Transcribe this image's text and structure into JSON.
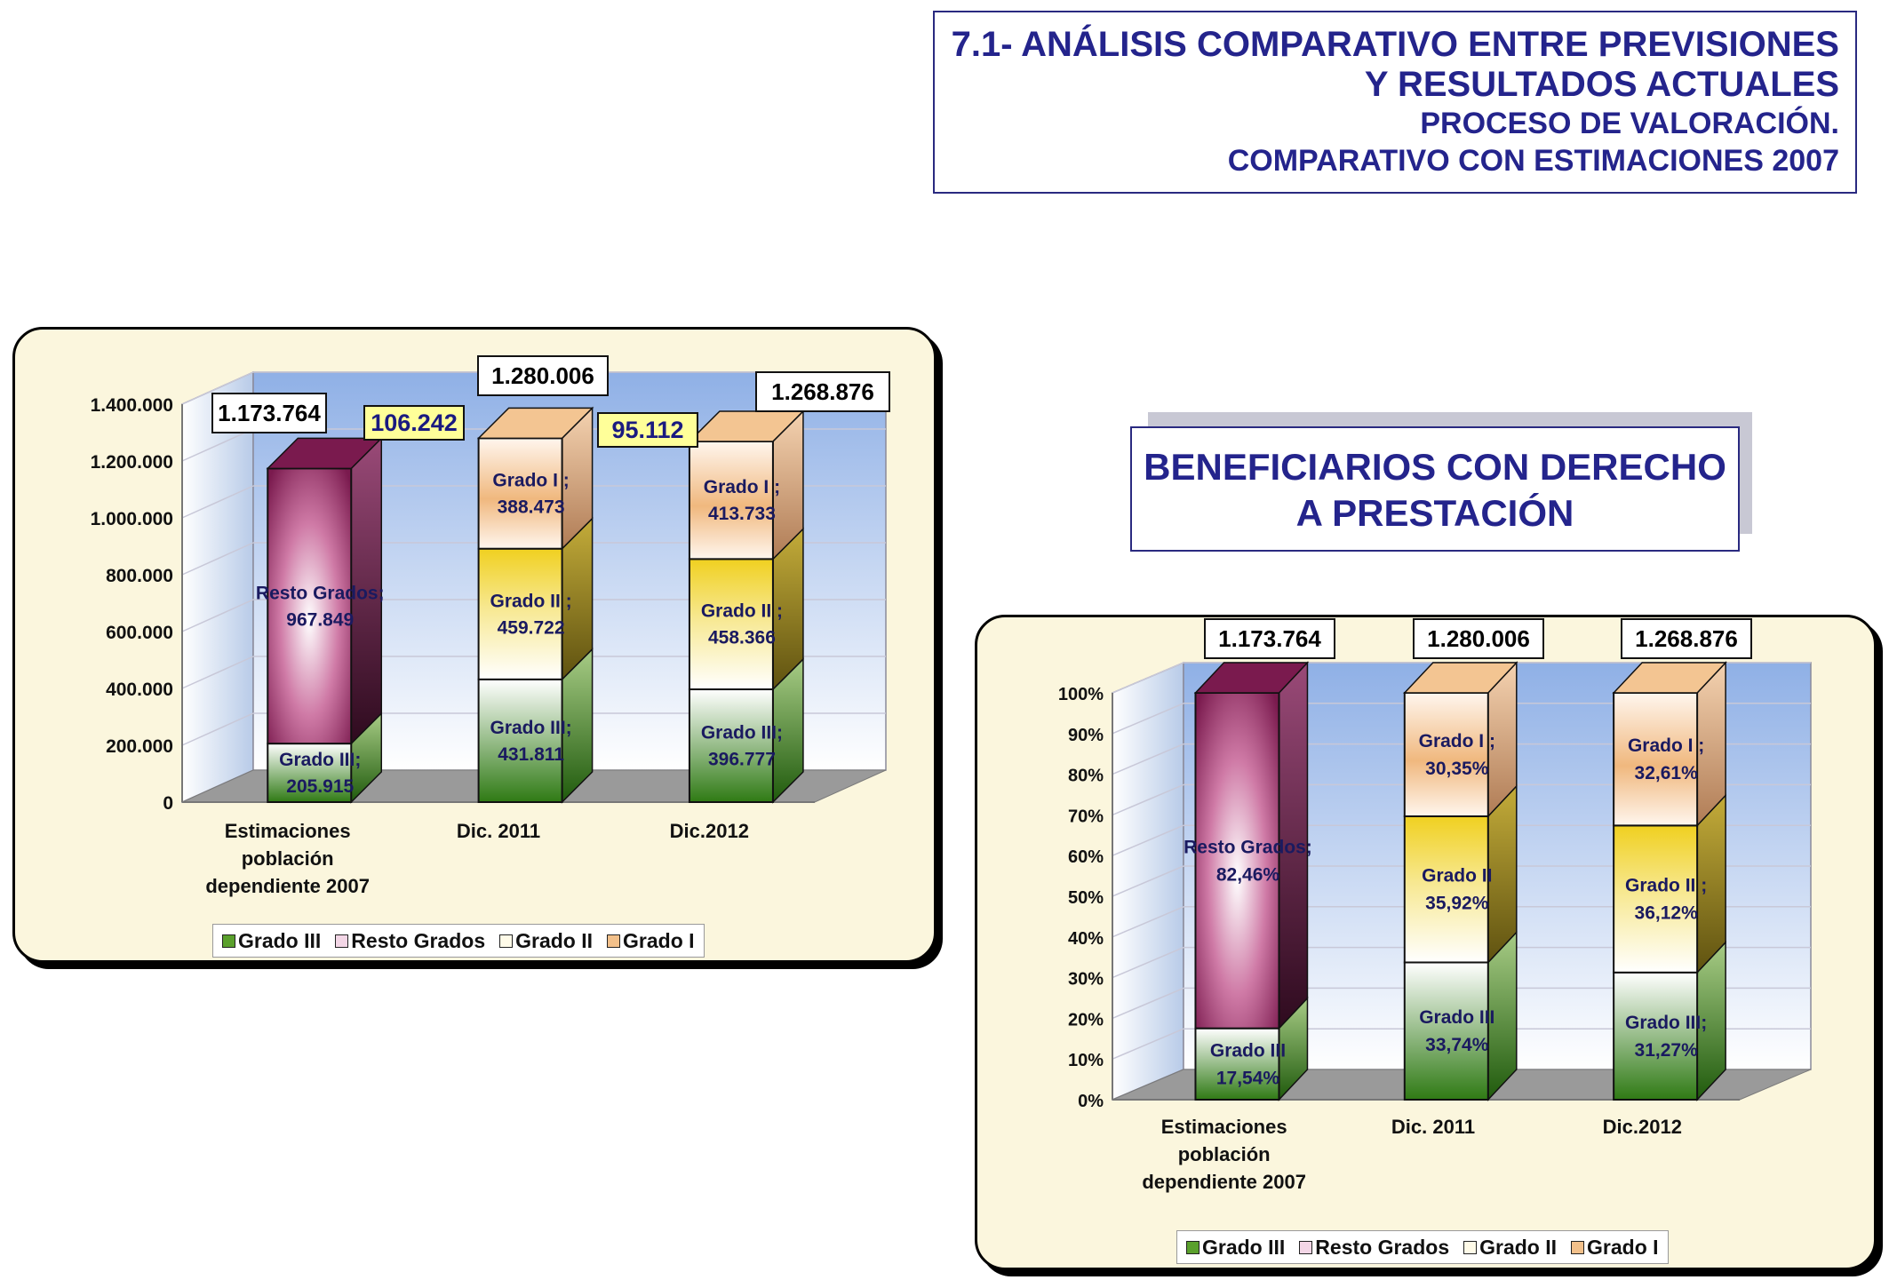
{
  "header": {
    "line1": "7.1- ANÁLISIS COMPARATIVO ENTRE PREVISIONES",
    "line2": "Y RESULTADOS ACTUALES",
    "line3": "PROCESO DE VALORACIÓN.",
    "line4": "COMPARATIVO CON ESTIMACIONES 2007"
  },
  "subtitle": {
    "line1": "BENEFICIARIOS CON DERECHO",
    "line2": "A PRESTACIÓN"
  },
  "colors": {
    "grado3": "#5aa02c",
    "resto": "#8b1e5a",
    "grado2": "#f0d020",
    "grado1": "#f2c08a",
    "plotBg": "#a9c4ea",
    "floor": "#9a9a9a",
    "text": "#1a1a60"
  },
  "legend": [
    {
      "name": "Grado III",
      "color": "#5aa02c"
    },
    {
      "name": "Resto Grados",
      "color": "#c45a90"
    },
    {
      "name": "Grado II",
      "color": "#f6e36a"
    },
    {
      "name": "Grado I",
      "color": "#f2c08a"
    }
  ],
  "chart_data": [
    {
      "type": "bar",
      "stacked": true,
      "categories": [
        "Estimaciones población dependiente 2007",
        "Dic. 2011",
        "Dic.2012"
      ],
      "category_lines": [
        [
          "Estimaciones",
          "población",
          "dependiente 2007"
        ],
        [
          "Dic. 2011"
        ],
        [
          "Dic.2012"
        ]
      ],
      "y_ticks": [
        "0",
        "200.000",
        "400.000",
        "600.000",
        "800.000",
        "1.000.000",
        "1.200.000",
        "1.400.000"
      ],
      "ylim": [
        0,
        1400000
      ],
      "grid": true,
      "legend_position": "bottom",
      "series": [
        {
          "name": "Grado III",
          "values": [
            205915,
            431811,
            396777
          ],
          "labels": [
            [
              "Grado III;",
              "205.915"
            ],
            [
              "Grado III;",
              "431.811"
            ],
            [
              "Grado III;",
              "396.777"
            ]
          ]
        },
        {
          "name": "Resto Grados",
          "values": [
            967849,
            null,
            null
          ],
          "labels": [
            [
              "Resto Grados;",
              "967.849"
            ],
            null,
            null
          ]
        },
        {
          "name": "Grado II",
          "values": [
            null,
            459722,
            458366
          ],
          "labels": [
            null,
            [
              "Grado II ;",
              "459.722"
            ],
            [
              "Grado II ;",
              "458.366"
            ]
          ]
        },
        {
          "name": "Grado I",
          "values": [
            null,
            388473,
            413733
          ],
          "labels": [
            null,
            [
              "Grado I ;",
              "388.473"
            ],
            [
              "Grado I ;",
              "413.733"
            ]
          ]
        }
      ],
      "totals": [
        "1.173.764",
        "1.280.006",
        "1.268.876"
      ],
      "differences": [
        "106.242",
        "95.112"
      ]
    },
    {
      "type": "bar",
      "stacked": true,
      "percent": true,
      "categories": [
        "Estimaciones población dependiente 2007",
        "Dic. 2011",
        "Dic.2012"
      ],
      "category_lines": [
        [
          "Estimaciones",
          "población",
          "dependiente 2007"
        ],
        [
          "Dic. 2011"
        ],
        [
          "Dic.2012"
        ]
      ],
      "y_ticks": [
        "0%",
        "10%",
        "20%",
        "30%",
        "40%",
        "50%",
        "60%",
        "70%",
        "80%",
        "90%",
        "100%"
      ],
      "ylim": [
        0,
        100
      ],
      "grid": true,
      "legend_position": "bottom",
      "series": [
        {
          "name": "Grado III",
          "values": [
            17.54,
            33.74,
            31.27
          ],
          "labels": [
            [
              "Grado III",
              "17,54%"
            ],
            [
              "Grado III",
              "33,74%"
            ],
            [
              "Grado III;",
              "31,27%"
            ]
          ]
        },
        {
          "name": "Resto Grados",
          "values": [
            82.46,
            null,
            null
          ],
          "labels": [
            [
              "Resto Grados;",
              "82,46%"
            ],
            null,
            null
          ]
        },
        {
          "name": "Grado II",
          "values": [
            null,
            35.92,
            36.12
          ],
          "labels": [
            null,
            [
              "Grado II",
              "35,92%"
            ],
            [
              "Grado II ;",
              "36,12%"
            ]
          ]
        },
        {
          "name": "Grado I",
          "values": [
            null,
            30.35,
            32.61
          ],
          "labels": [
            null,
            [
              "Grado I ;",
              "30,35%"
            ],
            [
              "Grado I ;",
              "32,61%"
            ]
          ]
        }
      ],
      "totals": [
        "1.173.764",
        "1.280.006",
        "1.268.876"
      ]
    }
  ]
}
